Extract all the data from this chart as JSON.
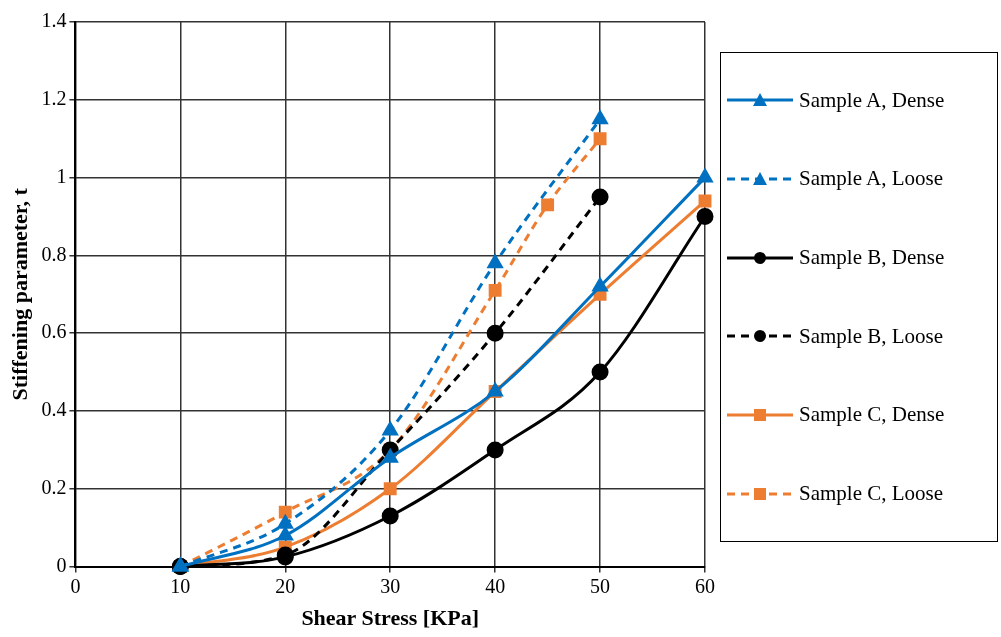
{
  "chart_data": {
    "type": "line",
    "xlabel": "Shear Stress [KPa]",
    "ylabel": "Stiffening parameter, t",
    "xlim": [
      0,
      60
    ],
    "xticks": [
      0,
      10,
      20,
      30,
      40,
      50,
      60
    ],
    "ylim": [
      0,
      1.4
    ],
    "yticks": [
      0,
      0.2,
      0.4,
      0.6,
      0.8,
      1,
      1.2,
      1.4
    ],
    "grid": true,
    "legend": "right",
    "series": [
      {
        "name": "Sample A, Dense",
        "color": "#0070c0",
        "marker": "triangle",
        "line_style": "solid",
        "x": [
          10,
          20,
          30,
          40,
          50,
          60
        ],
        "values": [
          0,
          0.08,
          0.28,
          0.45,
          0.72,
          1.0
        ]
      },
      {
        "name": "Sample A, Loose",
        "color": "#0070c0",
        "marker": "triangle",
        "line_style": "dashed",
        "x": [
          10,
          20,
          30,
          40,
          50
        ],
        "values": [
          0,
          0.11,
          0.35,
          0.78,
          1.15
        ]
      },
      {
        "name": "Sample B, Dense",
        "color": "#000000",
        "marker": "circle",
        "line_style": "solid",
        "x": [
          10,
          20,
          30,
          40,
          50,
          60
        ],
        "values": [
          0,
          0.025,
          0.13,
          0.3,
          0.5,
          0.9
        ]
      },
      {
        "name": "Sample B, Loose",
        "color": "#000000",
        "marker": "circle",
        "line_style": "dashed",
        "x": [
          10,
          20,
          30,
          40,
          50
        ],
        "values": [
          0,
          0.03,
          0.3,
          0.6,
          0.95
        ]
      },
      {
        "name": "Sample C, Dense",
        "color": "#ed7d31",
        "marker": "square",
        "line_style": "solid",
        "x": [
          10,
          20,
          30,
          40,
          50,
          60
        ],
        "values": [
          0,
          0.05,
          0.2,
          0.45,
          0.7,
          0.94
        ]
      },
      {
        "name": "Sample C, Loose",
        "color": "#ed7d31",
        "marker": "square",
        "line_style": "dashed",
        "x": [
          10,
          20,
          30,
          40,
          45,
          50
        ],
        "values": [
          0,
          0.14,
          0.3,
          0.71,
          0.93,
          1.1
        ]
      }
    ]
  }
}
